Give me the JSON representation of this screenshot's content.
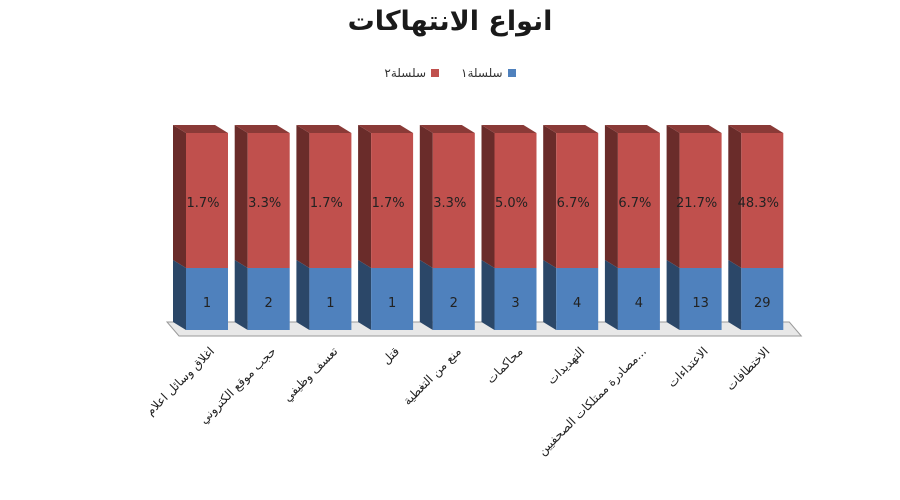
{
  "chart_data": {
    "type": "bar",
    "stacked": true,
    "three_d": true,
    "title": "انواع الانتهاكات",
    "categories": [
      "اغلاق وسائل اعلام",
      "حجب موقع الكتروني",
      "تعسف وظيفي",
      "قتل",
      "منع من التغطية",
      "محاكمات",
      "التهديدات",
      "مصادرة ممتلكات الصحفيين...",
      "الاعتداءات",
      "الاختطافات"
    ],
    "series": [
      {
        "name": "سلسلة١",
        "color": "#4f81bd",
        "values": [
          1,
          2,
          1,
          1,
          2,
          3,
          4,
          4,
          13,
          29
        ],
        "labels": [
          "1",
          "2",
          "1",
          "1",
          "2",
          "3",
          "4",
          "4",
          "13",
          "29"
        ]
      },
      {
        "name": "سلسلة٢",
        "color": "#c0504d",
        "values": [
          1.7,
          3.3,
          1.7,
          1.7,
          3.3,
          5.0,
          6.7,
          6.7,
          21.7,
          48.3
        ],
        "labels": [
          "1.7%",
          "3.3%",
          "1.7%",
          "1.7%",
          "3.3%",
          "5.0%",
          "6.7%",
          "6.7%",
          "21.7%",
          "48.3%"
        ]
      }
    ],
    "legend_position": "top",
    "grid": false
  }
}
